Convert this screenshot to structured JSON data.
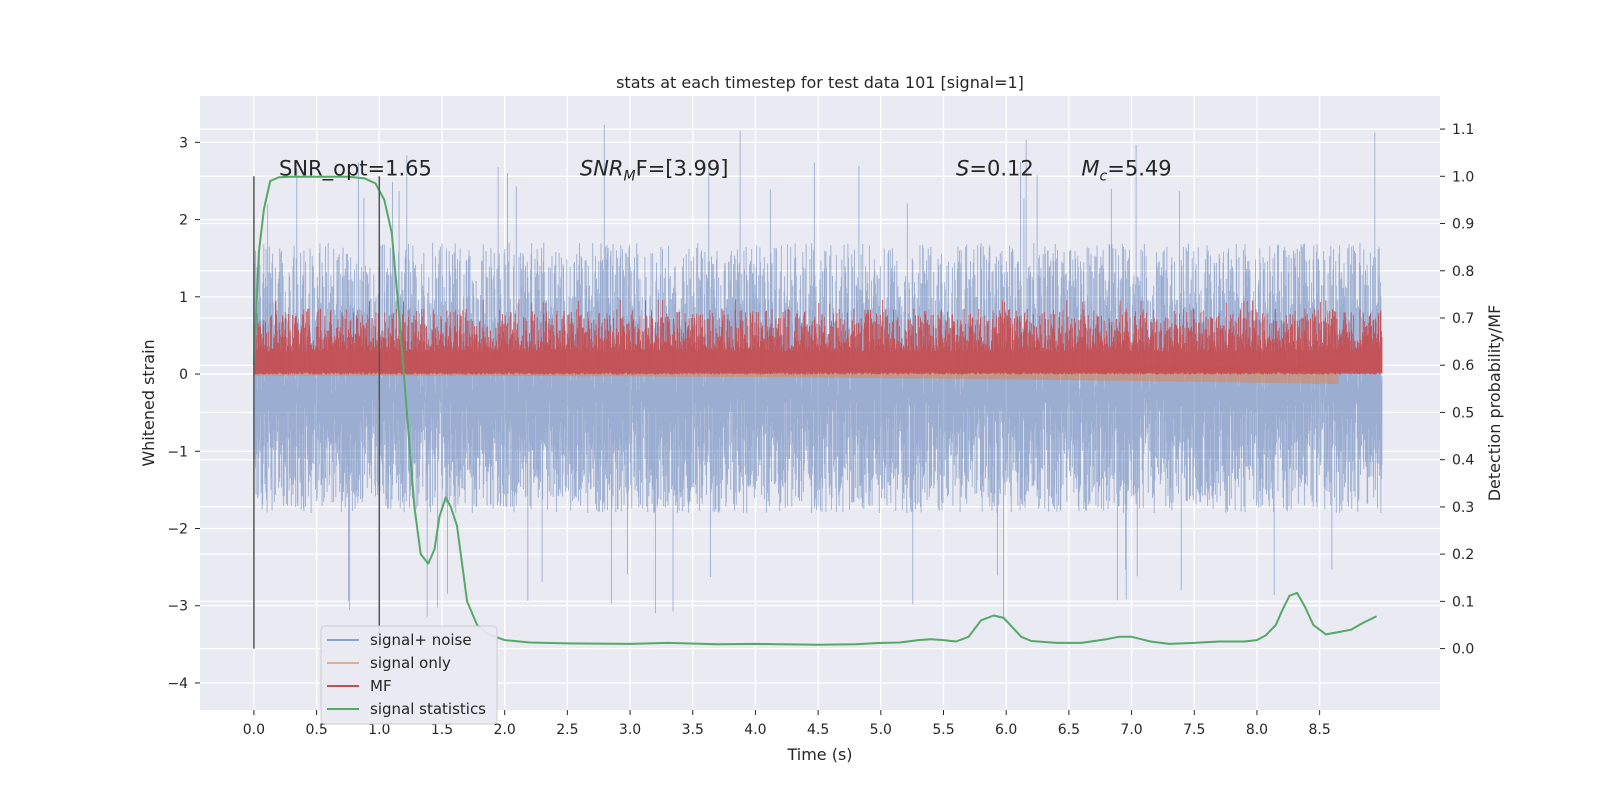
{
  "chart_data": {
    "type": "line",
    "title": "stats at each timestep for test data 101 [signal=1]",
    "xlabel": "Time (s)",
    "ylabel_left": "Whitened strain",
    "ylabel_right": "Detection probability/MF",
    "xlim": [
      -0.43,
      9.46
    ],
    "ylim_left": [
      -4.35,
      3.6
    ],
    "ylim_right": [
      -0.13,
      1.17
    ],
    "x_ticks": [
      0.0,
      0.5,
      1.0,
      1.5,
      2.0,
      2.5,
      3.0,
      3.5,
      4.0,
      4.5,
      5.0,
      5.5,
      6.0,
      6.5,
      7.0,
      7.5,
      8.0,
      8.5
    ],
    "x_tick_labels": [
      "0.0",
      "0.5",
      "1.0",
      "1.5",
      "2.0",
      "2.5",
      "3.0",
      "3.5",
      "4.0",
      "4.5",
      "5.0",
      "5.5",
      "6.0",
      "6.5",
      "7.0",
      "7.5",
      "8.0",
      "8.5"
    ],
    "y_left_ticks": [
      -4,
      -3,
      -2,
      -1,
      0,
      1,
      2,
      3
    ],
    "y_left_tick_labels": [
      "−4",
      "−3",
      "−2",
      "−1",
      "0",
      "1",
      "2",
      "3"
    ],
    "y_right_ticks": [
      0.0,
      0.1,
      0.2,
      0.3,
      0.4,
      0.5,
      0.6,
      0.7,
      0.8,
      0.9,
      1.0,
      1.1
    ],
    "y_right_tick_labels": [
      "0.0",
      "0.1",
      "0.2",
      "0.3",
      "0.4",
      "0.5",
      "0.6",
      "0.7",
      "0.8",
      "0.9",
      "1.0",
      "1.1"
    ],
    "grid": true,
    "vlines": [
      0.0,
      1.0
    ],
    "vline_ylim": [
      0.0,
      1.0
    ],
    "annotations": [
      {
        "label": "SNR_opt=1.65",
        "x": 0.2,
        "y": 1.0
      },
      {
        "prefix": "SNR",
        "sub": "M",
        "suffix": "F=[3.99]",
        "italic_prefix": true,
        "x": 2.6,
        "y": 1.0
      },
      {
        "prefix": "S",
        "sub": "",
        "suffix": "=0.12",
        "italic_prefix": true,
        "x": 5.6,
        "y": 1.0
      },
      {
        "prefix": "M",
        "sub": "c",
        "suffix": "=5.49",
        "italic_prefix": true,
        "x": 6.6,
        "y": 1.0
      }
    ],
    "legend": {
      "placement": "lower-left",
      "entries": [
        {
          "label": "signal+ noise",
          "color": "#4c72b0"
        },
        {
          "label": "signal only",
          "color": "#dd8452"
        },
        {
          "label": "MF",
          "color": "#c44e52"
        },
        {
          "label": "signal statistics",
          "color": "#55a868"
        }
      ]
    },
    "series": [
      {
        "name": "signal+ noise",
        "axis": "left",
        "color": "#4c72b0",
        "style": "dense-noise",
        "x_range": [
          0.0,
          9.0
        ],
        "center": -0.3,
        "typical_range": [
          -1.8,
          1.7
        ],
        "extremes": [
          -3.3,
          3.25
        ]
      },
      {
        "name": "signal only",
        "axis": "left",
        "color": "#dd8452",
        "style": "chirp",
        "x_range": [
          0.0,
          8.65
        ],
        "center": 0.0,
        "envelope_start": 0.02,
        "envelope_end": 0.13
      },
      {
        "name": "MF",
        "axis": "right",
        "color": "#c44e52",
        "style": "dense-noise",
        "x_range": [
          0.0,
          9.0
        ],
        "baseline": 0.58,
        "typical_range": [
          0.58,
          0.72
        ],
        "extremes": [
          0.575,
          0.74
        ]
      },
      {
        "name": "signal statistics",
        "axis": "right",
        "color": "#55a868",
        "x": [
          0.0,
          0.04,
          0.08,
          0.13,
          0.2,
          0.3,
          0.5,
          0.75,
          0.88,
          0.97,
          1.04,
          1.1,
          1.16,
          1.22,
          1.28,
          1.33,
          1.39,
          1.44,
          1.48,
          1.53,
          1.57,
          1.62,
          1.7,
          1.78,
          1.87,
          2.0,
          2.2,
          2.5,
          3.0,
          3.3,
          3.7,
          4.0,
          4.5,
          4.8,
          5.0,
          5.15,
          5.3,
          5.4,
          5.5,
          5.6,
          5.7,
          5.8,
          5.9,
          5.98,
          6.05,
          6.12,
          6.2,
          6.4,
          6.6,
          6.8,
          6.9,
          7.0,
          7.15,
          7.3,
          7.5,
          7.7,
          7.9,
          8.0,
          8.07,
          8.15,
          8.2,
          8.26,
          8.32,
          8.38,
          8.45,
          8.55,
          8.65,
          8.75,
          8.85,
          8.95
        ],
        "y": [
          0.6,
          0.84,
          0.93,
          0.99,
          0.998,
          0.999,
          0.999,
          0.999,
          0.996,
          0.985,
          0.95,
          0.88,
          0.7,
          0.5,
          0.3,
          0.2,
          0.18,
          0.21,
          0.28,
          0.32,
          0.3,
          0.26,
          0.1,
          0.05,
          0.03,
          0.018,
          0.013,
          0.011,
          0.01,
          0.012,
          0.009,
          0.01,
          0.008,
          0.009,
          0.012,
          0.013,
          0.018,
          0.02,
          0.018,
          0.015,
          0.025,
          0.06,
          0.07,
          0.065,
          0.045,
          0.025,
          0.016,
          0.012,
          0.012,
          0.02,
          0.025,
          0.025,
          0.015,
          0.01,
          0.012,
          0.015,
          0.015,
          0.018,
          0.028,
          0.05,
          0.08,
          0.112,
          0.118,
          0.09,
          0.05,
          0.03,
          0.035,
          0.04,
          0.055,
          0.068
        ]
      }
    ]
  }
}
